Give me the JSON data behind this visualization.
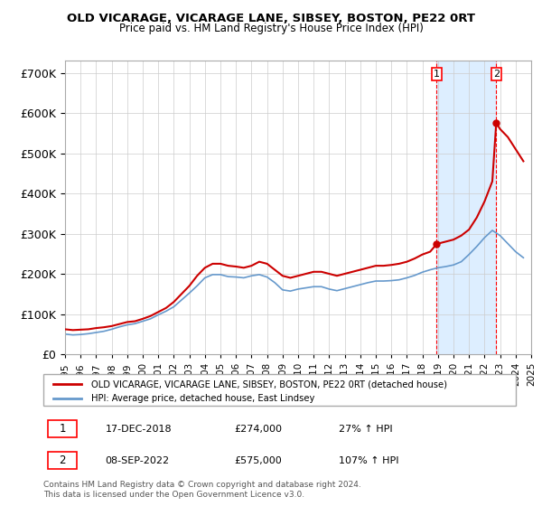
{
  "title": "OLD VICARAGE, VICARAGE LANE, SIBSEY, BOSTON, PE22 0RT",
  "subtitle": "Price paid vs. HM Land Registry's House Price Index (HPI)",
  "ylabel_ticks": [
    "£0",
    "£100K",
    "£200K",
    "£300K",
    "£400K",
    "£500K",
    "£600K",
    "£700K"
  ],
  "ytick_values": [
    0,
    100000,
    200000,
    300000,
    400000,
    500000,
    600000,
    700000
  ],
  "ylim": [
    0,
    730000
  ],
  "red_line_label": "OLD VICARAGE, VICARAGE LANE, SIBSEY, BOSTON, PE22 0RT (detached house)",
  "blue_line_label": "HPI: Average price, detached house, East Lindsey",
  "transaction1_label": "1",
  "transaction1_date": "17-DEC-2018",
  "transaction1_price": "£274,000",
  "transaction1_hpi": "27% ↑ HPI",
  "transaction2_label": "2",
  "transaction2_date": "08-SEP-2022",
  "transaction2_price": "£575,000",
  "transaction2_hpi": "107% ↑ HPI",
  "footnote": "Contains HM Land Registry data © Crown copyright and database right 2024.\nThis data is licensed under the Open Government Licence v3.0.",
  "red_color": "#cc0000",
  "blue_color": "#6699cc",
  "shading_color": "#ddeeff",
  "grid_color": "#cccccc",
  "hpi_blue": "#6699cc",
  "red_x": [
    1995.0,
    1995.5,
    1996.0,
    1996.5,
    1997.0,
    1997.5,
    1998.0,
    1998.5,
    1999.0,
    1999.5,
    2000.0,
    2000.5,
    2001.0,
    2001.5,
    2002.0,
    2002.5,
    2003.0,
    2003.5,
    2004.0,
    2004.5,
    2005.0,
    2005.5,
    2006.0,
    2006.5,
    2007.0,
    2007.5,
    2008.0,
    2008.5,
    2009.0,
    2009.5,
    2010.0,
    2010.5,
    2011.0,
    2011.5,
    2012.0,
    2012.5,
    2013.0,
    2013.5,
    2014.0,
    2014.5,
    2015.0,
    2015.5,
    2016.0,
    2016.5,
    2017.0,
    2017.5,
    2018.0,
    2018.5,
    2018.917,
    2019.0,
    2019.5,
    2020.0,
    2020.5,
    2021.0,
    2021.5,
    2022.0,
    2022.5,
    2022.75,
    2023.0,
    2023.5,
    2024.0,
    2024.5
  ],
  "red_y": [
    62000,
    60000,
    61000,
    62000,
    65000,
    67000,
    70000,
    75000,
    80000,
    82000,
    88000,
    95000,
    105000,
    115000,
    130000,
    150000,
    170000,
    195000,
    215000,
    225000,
    225000,
    220000,
    218000,
    215000,
    220000,
    230000,
    225000,
    210000,
    195000,
    190000,
    195000,
    200000,
    205000,
    205000,
    200000,
    195000,
    200000,
    205000,
    210000,
    215000,
    220000,
    220000,
    222000,
    225000,
    230000,
    238000,
    248000,
    255000,
    274000,
    275000,
    280000,
    285000,
    295000,
    310000,
    340000,
    380000,
    430000,
    575000,
    560000,
    540000,
    510000,
    480000
  ],
  "blue_x": [
    1995.0,
    1995.5,
    1996.0,
    1996.5,
    1997.0,
    1997.5,
    1998.0,
    1998.5,
    1999.0,
    1999.5,
    2000.0,
    2000.5,
    2001.0,
    2001.5,
    2002.0,
    2002.5,
    2003.0,
    2003.5,
    2004.0,
    2004.5,
    2005.0,
    2005.5,
    2006.0,
    2006.5,
    2007.0,
    2007.5,
    2008.0,
    2008.5,
    2009.0,
    2009.5,
    2010.0,
    2010.5,
    2011.0,
    2011.5,
    2012.0,
    2012.5,
    2013.0,
    2013.5,
    2014.0,
    2014.5,
    2015.0,
    2015.5,
    2016.0,
    2016.5,
    2017.0,
    2017.5,
    2018.0,
    2018.5,
    2019.0,
    2019.5,
    2020.0,
    2020.5,
    2021.0,
    2021.5,
    2022.0,
    2022.5,
    2023.0,
    2023.5,
    2024.0,
    2024.5
  ],
  "blue_y": [
    50000,
    48000,
    49000,
    51000,
    54000,
    57000,
    62000,
    68000,
    73000,
    76000,
    82000,
    88000,
    98000,
    107000,
    118000,
    135000,
    152000,
    170000,
    190000,
    198000,
    198000,
    193000,
    192000,
    190000,
    195000,
    198000,
    192000,
    178000,
    160000,
    157000,
    162000,
    165000,
    168000,
    168000,
    162000,
    158000,
    163000,
    168000,
    173000,
    178000,
    182000,
    182000,
    183000,
    185000,
    190000,
    196000,
    204000,
    210000,
    215000,
    218000,
    222000,
    230000,
    248000,
    268000,
    290000,
    308000,
    295000,
    275000,
    255000,
    240000
  ],
  "transaction1_x": 2018.917,
  "transaction1_y": 274000,
  "transaction2_x": 2022.75,
  "transaction2_y": 575000,
  "xmin": 1995,
  "xmax": 2025
}
